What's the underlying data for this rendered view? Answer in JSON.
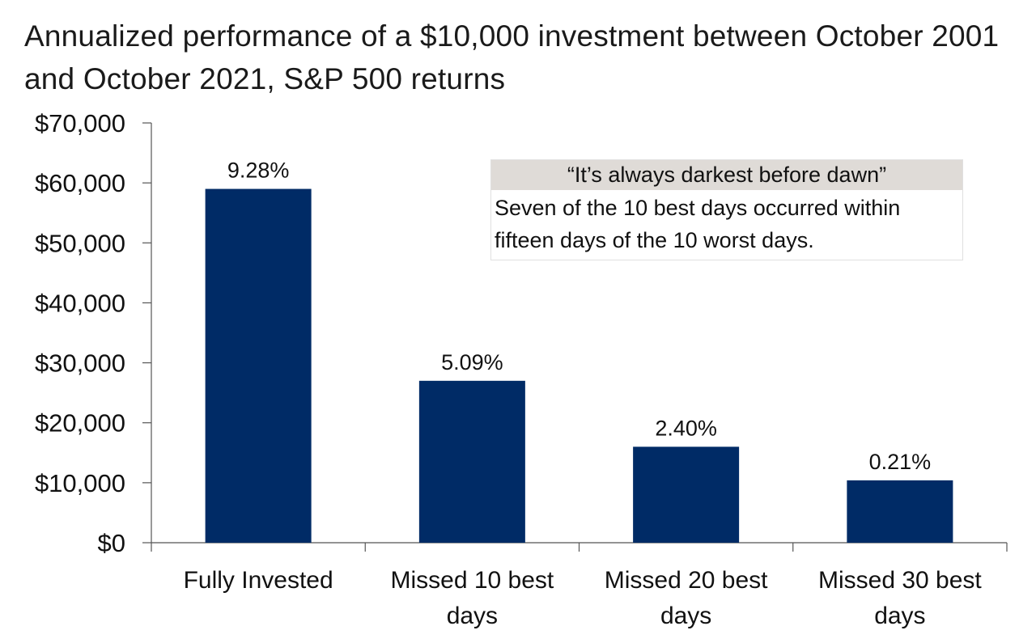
{
  "chart_data": {
    "type": "bar",
    "title": "Annualized performance of a $10,000 investment between October 2001 and October 2021, S&P 500 returns",
    "categories": [
      [
        "Fully Invested"
      ],
      [
        "Missed 10 best",
        "days"
      ],
      [
        "Missed 20 best",
        "days"
      ],
      [
        "Missed 30 best",
        "days"
      ]
    ],
    "values": [
      59000,
      27000,
      16000,
      10400
    ],
    "data_labels": [
      "9.28%",
      "5.09%",
      "2.40%",
      "0.21%"
    ],
    "ylim": [
      0,
      70000
    ],
    "yticks": [
      0,
      10000,
      20000,
      30000,
      40000,
      50000,
      60000,
      70000
    ],
    "ytick_labels": [
      "$0",
      "$10,000",
      "$20,000",
      "$30,000",
      "$40,000",
      "$50,000",
      "$60,000",
      "$70,000"
    ],
    "xlabel": "",
    "ylabel": "",
    "bar_color": "#002b66",
    "grid": false
  },
  "callout": {
    "title": "“It’s always darkest before dawn”",
    "body": "Seven of the 10 best days occurred within fifteen days of the 10 worst days."
  }
}
